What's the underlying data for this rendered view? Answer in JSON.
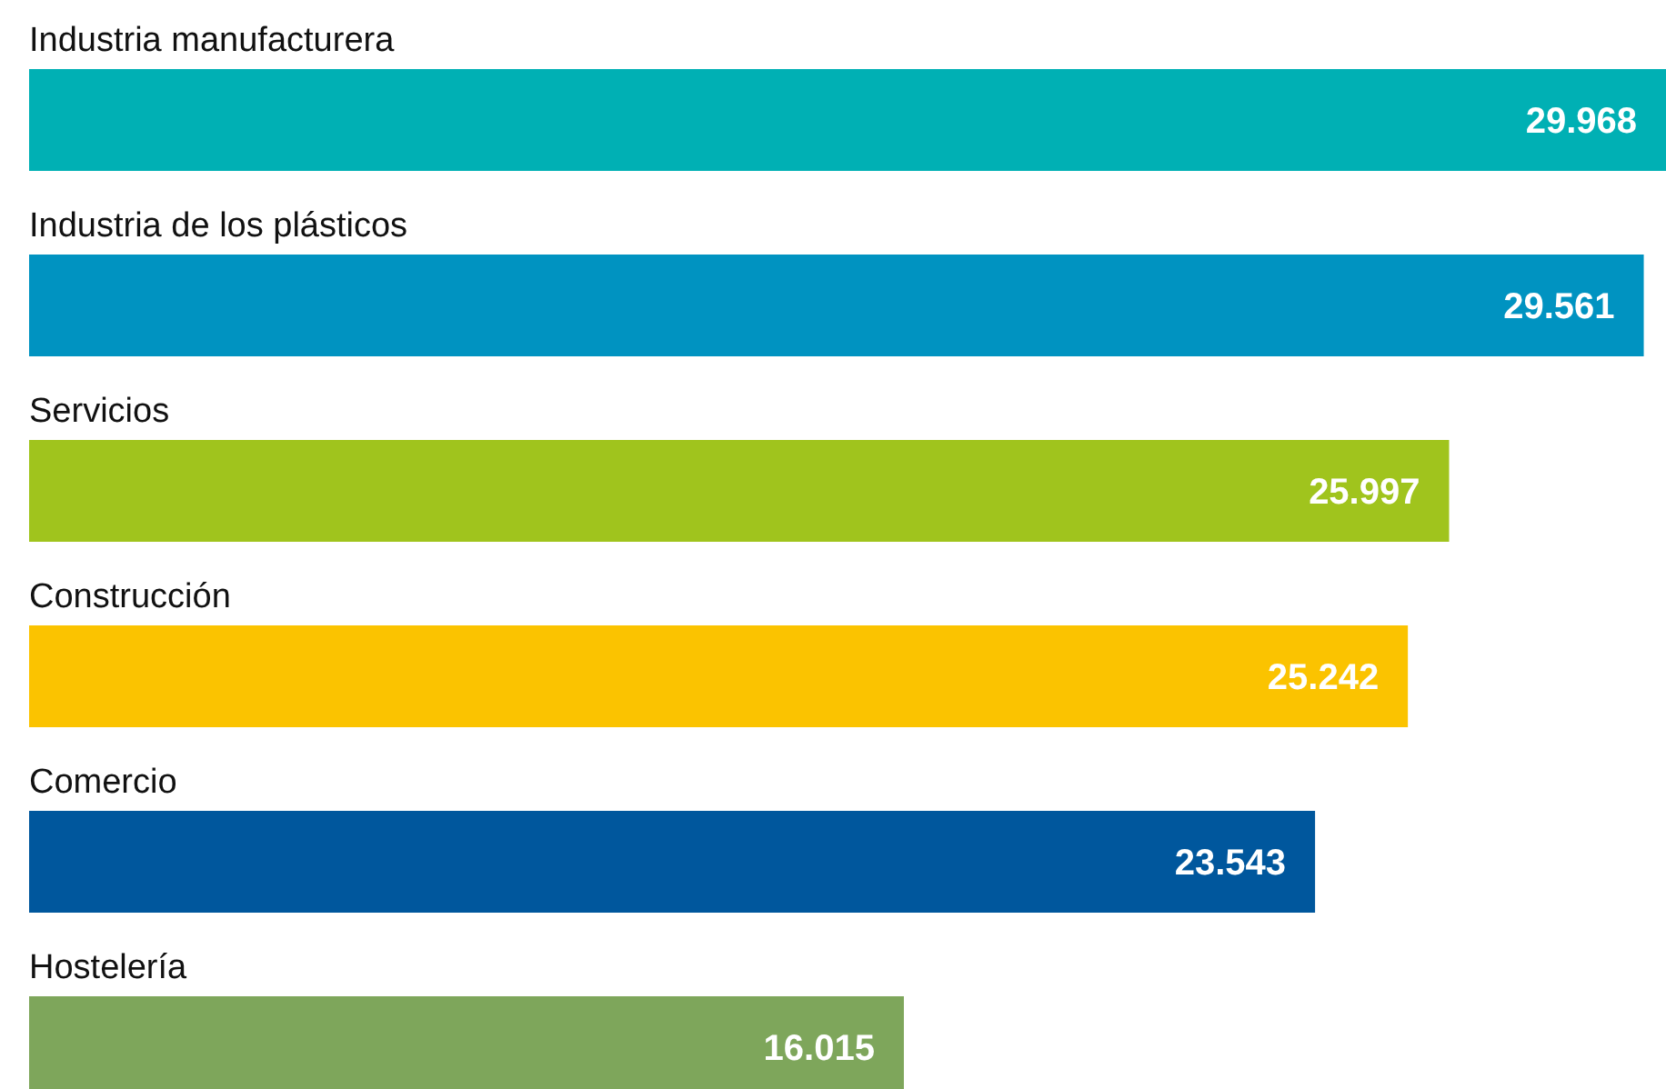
{
  "chart_data": {
    "type": "bar",
    "orientation": "horizontal",
    "categories": [
      "Industria manufacturera",
      "Industria de los plásticos",
      "Servicios",
      "Construcción",
      "Comercio",
      "Hostelería"
    ],
    "values": [
      29968,
      29561,
      25997,
      25242,
      23543,
      16015
    ],
    "value_labels": [
      "29.968",
      "29.561",
      "25.997",
      "25.242",
      "23.543",
      "16.015"
    ],
    "colors": [
      "#00b0b4",
      "#0093c1",
      "#a0c41d",
      "#fbc300",
      "#00579d",
      "#7ea65b"
    ]
  }
}
